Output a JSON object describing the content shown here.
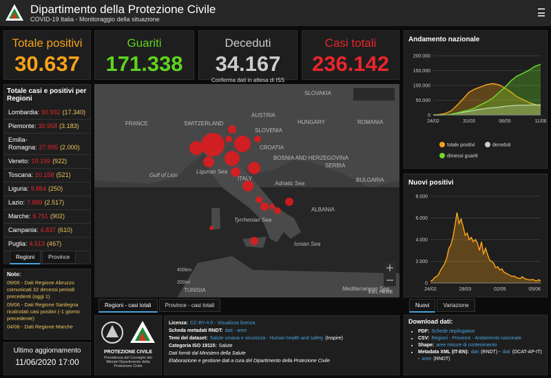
{
  "header": {
    "title": "Dipartimento della Protezione Civile",
    "subtitle": "COVID-19 Italia - Monitoraggio della situazione"
  },
  "kpis": [
    {
      "label": "Totale positivi",
      "value": "30.637",
      "color": "#f7a21b"
    },
    {
      "label": "Guariti",
      "value": "171.338",
      "color": "#5fd31f"
    },
    {
      "label": "Deceduti",
      "value": "34.167",
      "note": "Conferma dati in attesa di ISS",
      "color": "#cccccc"
    },
    {
      "label": "Casi totali",
      "value": "236.142",
      "color": "#e8262b"
    }
  ],
  "regions": {
    "title": "Totale casi e positivi per Regioni",
    "rows": [
      [
        "Lombardia:",
        "90.932",
        "(17.340)"
      ],
      [
        "Piemonte:",
        "30.958",
        "(3.183)"
      ],
      [
        "Emilia-Romagna:",
        "27.995",
        "(2.000)"
      ],
      [
        "Veneto:",
        "19.199",
        "(922)"
      ],
      [
        "Toscana:",
        "10.158",
        "(521)"
      ],
      [
        "Liguria:",
        "9.864",
        "(250)"
      ],
      [
        "Lazio:",
        "7.889",
        "(2.517)"
      ],
      [
        "Marche:",
        "6.751",
        "(902)"
      ],
      [
        "Campania:",
        "4.837",
        "(610)"
      ],
      [
        "Puglia:",
        "4.513",
        "(467)"
      ]
    ],
    "tabs": [
      "Regioni",
      "Province"
    ]
  },
  "notes": {
    "title": "Note:",
    "items": [
      "09/06 - Dati Regione Abruzzo comunicati 32 decessi periodi precedenti (oggi 1)",
      "09/06 - Dati Regione Sardegna ricalcolati casi positivi (-1 giorno precedente)",
      "04/06 - Dati Regione Marche"
    ]
  },
  "update": {
    "label": "Ultimo aggiornamento",
    "value": "11/06/2020 17:00"
  },
  "map": {
    "labels": [
      "FRANCE",
      "SWITZERLAND",
      "AUSTRIA",
      "SLOVAKIA",
      "HUNGARY",
      "SLOVENIA",
      "CROATIA",
      "BOSNIA AND HERZEGOVINA",
      "SERBIA",
      "ROMANIA",
      "BULGARIA",
      "ALBANIA",
      "ITALY",
      "TUNISIA",
      "Gulf of Lion",
      "Ligurian Sea",
      "Adriatic Sea",
      "Tyrrhenian Sea",
      "Ionian Sea",
      "Mediterranean Sea"
    ],
    "attribution": "Esri, HERE",
    "scale": [
      "400km",
      "200mi"
    ],
    "tabs": [
      "Regioni - casi totali",
      "Province - casi totali"
    ]
  },
  "logos": {
    "name": "PROTEZIONE CIVILE",
    "caption": "Presidenza del Consiglio dei Ministri Dipartimento della Protezione Civile"
  },
  "license": [
    [
      {
        "kind": "label",
        "text": "Licenza:"
      },
      {
        "kind": "link",
        "text": "CC-BY-4.0 - Visualizza licenza"
      }
    ],
    [
      {
        "kind": "label",
        "text": "Scheda metadati RNDT:"
      },
      {
        "kind": "link",
        "text": "dati - aree"
      }
    ],
    [
      {
        "kind": "label",
        "text": "Temi del dataset:"
      },
      {
        "kind": "link",
        "text": "Salute umana e sicurezza - Human health and safety"
      },
      {
        "kind": "text",
        "text": "(Inspire)"
      }
    ],
    [
      {
        "kind": "label",
        "text": "Categoria ISO 19115:"
      },
      {
        "kind": "text",
        "text": "Salute"
      }
    ],
    [
      {
        "kind": "text",
        "text": "Dati forniti dal Ministero della Salute"
      }
    ],
    [
      {
        "kind": "text",
        "text": "Elaborazione e gestione dati a cura del Dipartimento della Protezione Civile"
      }
    ]
  ],
  "download": {
    "title": "Download dati:",
    "items": [
      [
        {
          "kind": "label",
          "text": "PDF:"
        },
        {
          "kind": "link",
          "text": "Schede riepilogative"
        }
      ],
      [
        {
          "kind": "label",
          "text": "CSV:"
        },
        {
          "kind": "link",
          "text": "Regioni - Province - Andamento nazionale"
        }
      ],
      [
        {
          "kind": "label",
          "text": "Shape:"
        },
        {
          "kind": "link",
          "text": "aree misure di contenimento"
        }
      ],
      [
        {
          "kind": "label",
          "text": "Metadata XML (IT-EN):"
        },
        {
          "kind": "link",
          "text": "dati"
        },
        {
          "kind": "text",
          "text": "(RNDT) -"
        },
        {
          "kind": "link",
          "text": "dati"
        },
        {
          "kind": "text",
          "text": "(DCAT-AP-IT) -"
        },
        {
          "kind": "link",
          "text": "aree"
        },
        {
          "kind": "text",
          "text": "(RNDT)"
        }
      ]
    ]
  },
  "trend_tabs": [
    "Nuovi",
    "Variazione"
  ],
  "chart_data": [
    {
      "type": "area",
      "title": "Andamento nazionale",
      "categories": [
        "24/02",
        null,
        null,
        null,
        null,
        null,
        "31/03",
        null,
        null,
        null,
        null,
        null,
        "06/05",
        null,
        null,
        null,
        null,
        null,
        "11/06"
      ],
      "series": [
        {
          "name": "totale positivi",
          "color": "#f7a21b",
          "values": [
            200,
            1500,
            5000,
            14000,
            33000,
            54000,
            77000,
            88000,
            95000,
            103000,
            106000,
            102000,
            91000,
            78000,
            62000,
            52000,
            42000,
            36000,
            30637
          ]
        },
        {
          "name": "deceduti",
          "color": "#cccccc",
          "values": [
            7,
            100,
            460,
            2150,
            6100,
            9130,
            12430,
            16500,
            19500,
            22700,
            24600,
            26600,
            29300,
            31100,
            32300,
            33000,
            33500,
            33800,
            34167
          ]
        },
        {
          "name": "dimessi guariti",
          "color": "#6bdc2a",
          "values": [
            1,
            50,
            600,
            2600,
            7000,
            12400,
            16800,
            24400,
            35400,
            44900,
            57600,
            75900,
            93200,
            115300,
            131000,
            140500,
            150600,
            164000,
            171338
          ]
        }
      ],
      "ylim": [
        0,
        200000
      ],
      "yticks": [
        0,
        {
          "value": 50000,
          "label": "50.000"
        },
        {
          "value": 100000,
          "label": "100.000"
        },
        {
          "value": 150000,
          "label": "150.000"
        },
        {
          "value": 200000,
          "label": "200.000"
        }
      ],
      "grid": true
    },
    {
      "type": "area",
      "title": "Nuovi positivi",
      "color": "#f7a21b",
      "categories": [
        "24/02",
        null,
        null,
        null,
        null,
        null,
        null,
        null,
        null,
        null,
        null,
        null,
        null,
        null,
        null,
        null,
        null,
        "29/03",
        null,
        null,
        null,
        null,
        null,
        null,
        null,
        null,
        null,
        null,
        null,
        null,
        null,
        null,
        null,
        null,
        "02/05",
        null,
        null,
        null,
        null,
        null,
        null,
        null,
        null,
        null,
        null,
        null,
        null,
        null,
        null,
        null,
        null,
        "05/06",
        null,
        null,
        null
      ],
      "values": [
        200,
        250,
        500,
        600,
        800,
        1200,
        1500,
        1800,
        2300,
        3200,
        3500,
        4200,
        5300,
        6500,
        5500,
        5900,
        5200,
        4400,
        4600,
        4000,
        4200,
        3800,
        4000,
        3700,
        3000,
        3800,
        2700,
        3200,
        2600,
        2100,
        2000,
        1800,
        1400,
        1500,
        1200,
        1300,
        1000,
        900,
        800,
        700,
        600,
        650,
        500,
        450,
        400,
        580,
        420,
        350,
        300,
        280,
        330,
        250,
        180,
        300,
        200
      ],
      "ylim": [
        0,
        8000
      ],
      "yticks": [
        0,
        {
          "value": 2000,
          "label": "2.000"
        },
        {
          "value": 4000,
          "label": "4.000"
        },
        {
          "value": 6000,
          "label": "6.000"
        },
        {
          "value": 8000,
          "label": "8.000"
        }
      ],
      "grid": true
    }
  ]
}
